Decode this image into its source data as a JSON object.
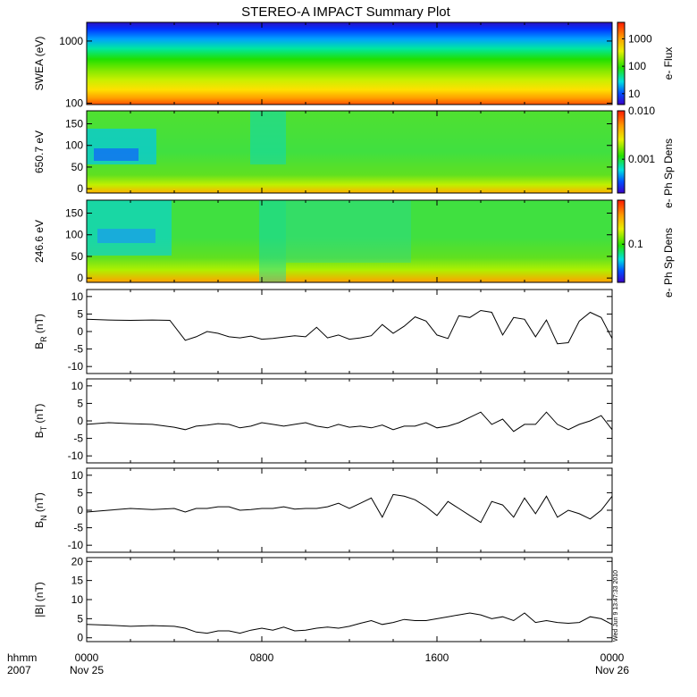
{
  "title": "STEREO-A IMPACT Summary Plot",
  "timestamp": "Wed Jun  9 13:47:33 2010",
  "x_axis": {
    "label_line1": "hhmm",
    "label_line2": "2007",
    "ticks": [
      {
        "hhmm": "0000",
        "date": "Nov 25"
      },
      {
        "hhmm": "0800",
        "date": ""
      },
      {
        "hhmm": "1600",
        "date": ""
      },
      {
        "hhmm": "0000",
        "date": "Nov 26"
      }
    ]
  },
  "chart_data": [
    {
      "type": "heatmap",
      "ylabel": "SWEA (eV)",
      "yscale": "log",
      "ylim": [
        95,
        2000
      ],
      "yticks": [
        100,
        1000
      ],
      "ytick_labels": [
        "100",
        "1000"
      ],
      "colorbar_label": "e- Flux",
      "colorbar_scale": "log",
      "colorbar_range": [
        4,
        4000
      ],
      "colorbar_ticks": [
        "10",
        "100",
        "1000"
      ]
    },
    {
      "type": "heatmap",
      "ylabel": "650.7 eV",
      "ylim": [
        -10,
        180
      ],
      "yticks": [
        0,
        50,
        100,
        150
      ],
      "ytick_labels": [
        "0",
        "50",
        "100",
        "150"
      ],
      "colorbar_label": "e- Ph Sp Dens",
      "colorbar_scale": "log",
      "colorbar_range": [
        0.0002,
        0.01
      ],
      "colorbar_ticks": [
        "0.001",
        "0.010"
      ]
    },
    {
      "type": "heatmap",
      "ylabel": "246.6 eV",
      "ylim": [
        -10,
        180
      ],
      "yticks": [
        0,
        50,
        100,
        150
      ],
      "ytick_labels": [
        "0",
        "50",
        "100",
        "150"
      ],
      "colorbar_label": "e- Ph Sp Dens",
      "colorbar_scale": "log",
      "colorbar_range": [
        0.03,
        0.4
      ],
      "colorbar_ticks": [
        "0.1"
      ]
    },
    {
      "type": "line",
      "ylabel": "B",
      "ylabel_sub": "R",
      "yunit": " (nT)",
      "ylim": [
        -12,
        12
      ],
      "yticks": [
        -10,
        -5,
        0,
        5,
        10
      ],
      "ytick_labels": [
        "-10",
        "-5",
        "0",
        "5",
        "10"
      ],
      "x_hours": [
        0,
        1,
        2,
        3,
        3.8,
        4.5,
        5,
        5.5,
        6,
        6.5,
        7,
        7.5,
        8,
        8.5,
        9,
        9.5,
        10,
        10.5,
        11,
        11.5,
        12,
        12.5,
        13,
        13.5,
        14,
        14.5,
        15,
        15.5,
        16,
        16.5,
        17,
        17.5,
        18,
        18.5,
        19,
        19.5,
        20,
        20.5,
        21,
        21.5,
        22,
        22.5,
        23,
        23.5,
        24
      ],
      "y": [
        3.5,
        3.3,
        3.2,
        3.3,
        3.2,
        -2.5,
        -1.5,
        0,
        -0.5,
        -1.5,
        -1.8,
        -1.3,
        -2.2,
        -2.0,
        -1.6,
        -1.2,
        -1.5,
        1.2,
        -1.8,
        -1.0,
        -2.2,
        -1.8,
        -1.2,
        2.0,
        -0.5,
        1.5,
        4.2,
        3.0,
        -1.0,
        -2.0,
        4.5,
        4.0,
        6.0,
        5.5,
        -1.0,
        4.0,
        3.5,
        -1.5,
        3.3,
        -3.5,
        -3.2,
        3.0,
        5.5,
        4.0,
        -2.0
      ]
    },
    {
      "type": "line",
      "ylabel": "B",
      "ylabel_sub": "T",
      "yunit": " (nT)",
      "ylim": [
        -12,
        12
      ],
      "yticks": [
        -10,
        -5,
        0,
        5,
        10
      ],
      "ytick_labels": [
        "-10",
        "-5",
        "0",
        "5",
        "10"
      ],
      "x_hours": [
        0,
        1,
        2,
        3,
        4,
        4.5,
        5,
        5.5,
        6,
        6.5,
        7,
        7.5,
        8,
        8.5,
        9,
        9.5,
        10,
        10.5,
        11,
        11.5,
        12,
        12.5,
        13,
        13.5,
        14,
        14.5,
        15,
        15.5,
        16,
        16.5,
        17,
        17.5,
        18,
        18.5,
        19,
        19.5,
        20,
        20.5,
        21,
        21.5,
        22,
        22.5,
        23,
        23.5,
        24
      ],
      "y": [
        -1.0,
        -0.5,
        -0.8,
        -1.0,
        -1.8,
        -2.5,
        -1.5,
        -1.2,
        -0.8,
        -1.0,
        -2.0,
        -1.5,
        -0.5,
        -1.0,
        -1.5,
        -1.0,
        -0.5,
        -1.5,
        -2.0,
        -1.0,
        -1.8,
        -1.5,
        -2.0,
        -1.2,
        -2.5,
        -1.5,
        -1.5,
        -0.5,
        -2.0,
        -1.5,
        -0.5,
        1.0,
        2.5,
        -1.0,
        0.5,
        -3.0,
        -1.0,
        -1.0,
        2.5,
        -1.0,
        -2.5,
        -1.0,
        0.0,
        1.5,
        -2.5
      ]
    },
    {
      "type": "line",
      "ylabel": "B",
      "ylabel_sub": "N",
      "yunit": " (nT)",
      "ylim": [
        -12,
        12
      ],
      "yticks": [
        -10,
        -5,
        0,
        5,
        10
      ],
      "ytick_labels": [
        "-10",
        "-5",
        "0",
        "5",
        "10"
      ],
      "x_hours": [
        0,
        1,
        2,
        3,
        4,
        4.5,
        5,
        5.5,
        6,
        6.5,
        7,
        7.5,
        8,
        8.5,
        9,
        9.5,
        10,
        10.5,
        11,
        11.5,
        12,
        12.5,
        13,
        13.5,
        14,
        14.5,
        15,
        15.5,
        16,
        16.5,
        17,
        17.5,
        18,
        18.5,
        19,
        19.5,
        20,
        20.5,
        21,
        21.5,
        22,
        22.5,
        23,
        23.5,
        24
      ],
      "y": [
        -0.5,
        0.0,
        0.5,
        0.2,
        0.5,
        -0.5,
        0.5,
        0.5,
        1.0,
        1.0,
        0.0,
        0.2,
        0.5,
        0.5,
        1.0,
        0.3,
        0.5,
        0.5,
        1.0,
        2.0,
        0.5,
        2.0,
        3.5,
        -2.0,
        4.5,
        4.0,
        3.0,
        1.0,
        -1.5,
        2.5,
        0.5,
        -1.5,
        -3.5,
        2.5,
        1.5,
        -2.0,
        3.5,
        -1.0,
        4.0,
        -2.0,
        0.0,
        -1.0,
        -2.5,
        0.0,
        4.0
      ]
    },
    {
      "type": "line",
      "ylabel": "|B|",
      "ylabel_sub": "",
      "yunit": " (nT)",
      "ylim": [
        -1,
        21
      ],
      "yticks": [
        0,
        5,
        10,
        15,
        20
      ],
      "ytick_labels": [
        "0",
        "5",
        "10",
        "15",
        "20"
      ],
      "x_hours": [
        0,
        1,
        2,
        3,
        4,
        4.5,
        5,
        5.5,
        6,
        6.5,
        7,
        7.5,
        8,
        8.5,
        9,
        9.5,
        10,
        10.5,
        11,
        11.5,
        12,
        12.5,
        13,
        13.5,
        14,
        14.5,
        15,
        15.5,
        16,
        16.5,
        17,
        17.5,
        18,
        18.5,
        19,
        19.5,
        20,
        20.5,
        21,
        21.5,
        22,
        22.5,
        23,
        23.5,
        24
      ],
      "y": [
        3.5,
        3.3,
        3.0,
        3.2,
        3.0,
        2.5,
        1.5,
        1.2,
        1.8,
        1.8,
        1.2,
        2.0,
        2.5,
        2.0,
        2.8,
        1.8,
        2.0,
        2.5,
        2.8,
        2.5,
        3.0,
        3.8,
        4.5,
        3.5,
        4.0,
        4.8,
        4.5,
        4.5,
        5.0,
        5.5,
        6.0,
        6.5,
        6.0,
        5.0,
        5.5,
        4.5,
        6.5,
        4.0,
        4.5,
        4.0,
        3.8,
        4.0,
        5.5,
        5.0,
        3.5
      ]
    }
  ]
}
